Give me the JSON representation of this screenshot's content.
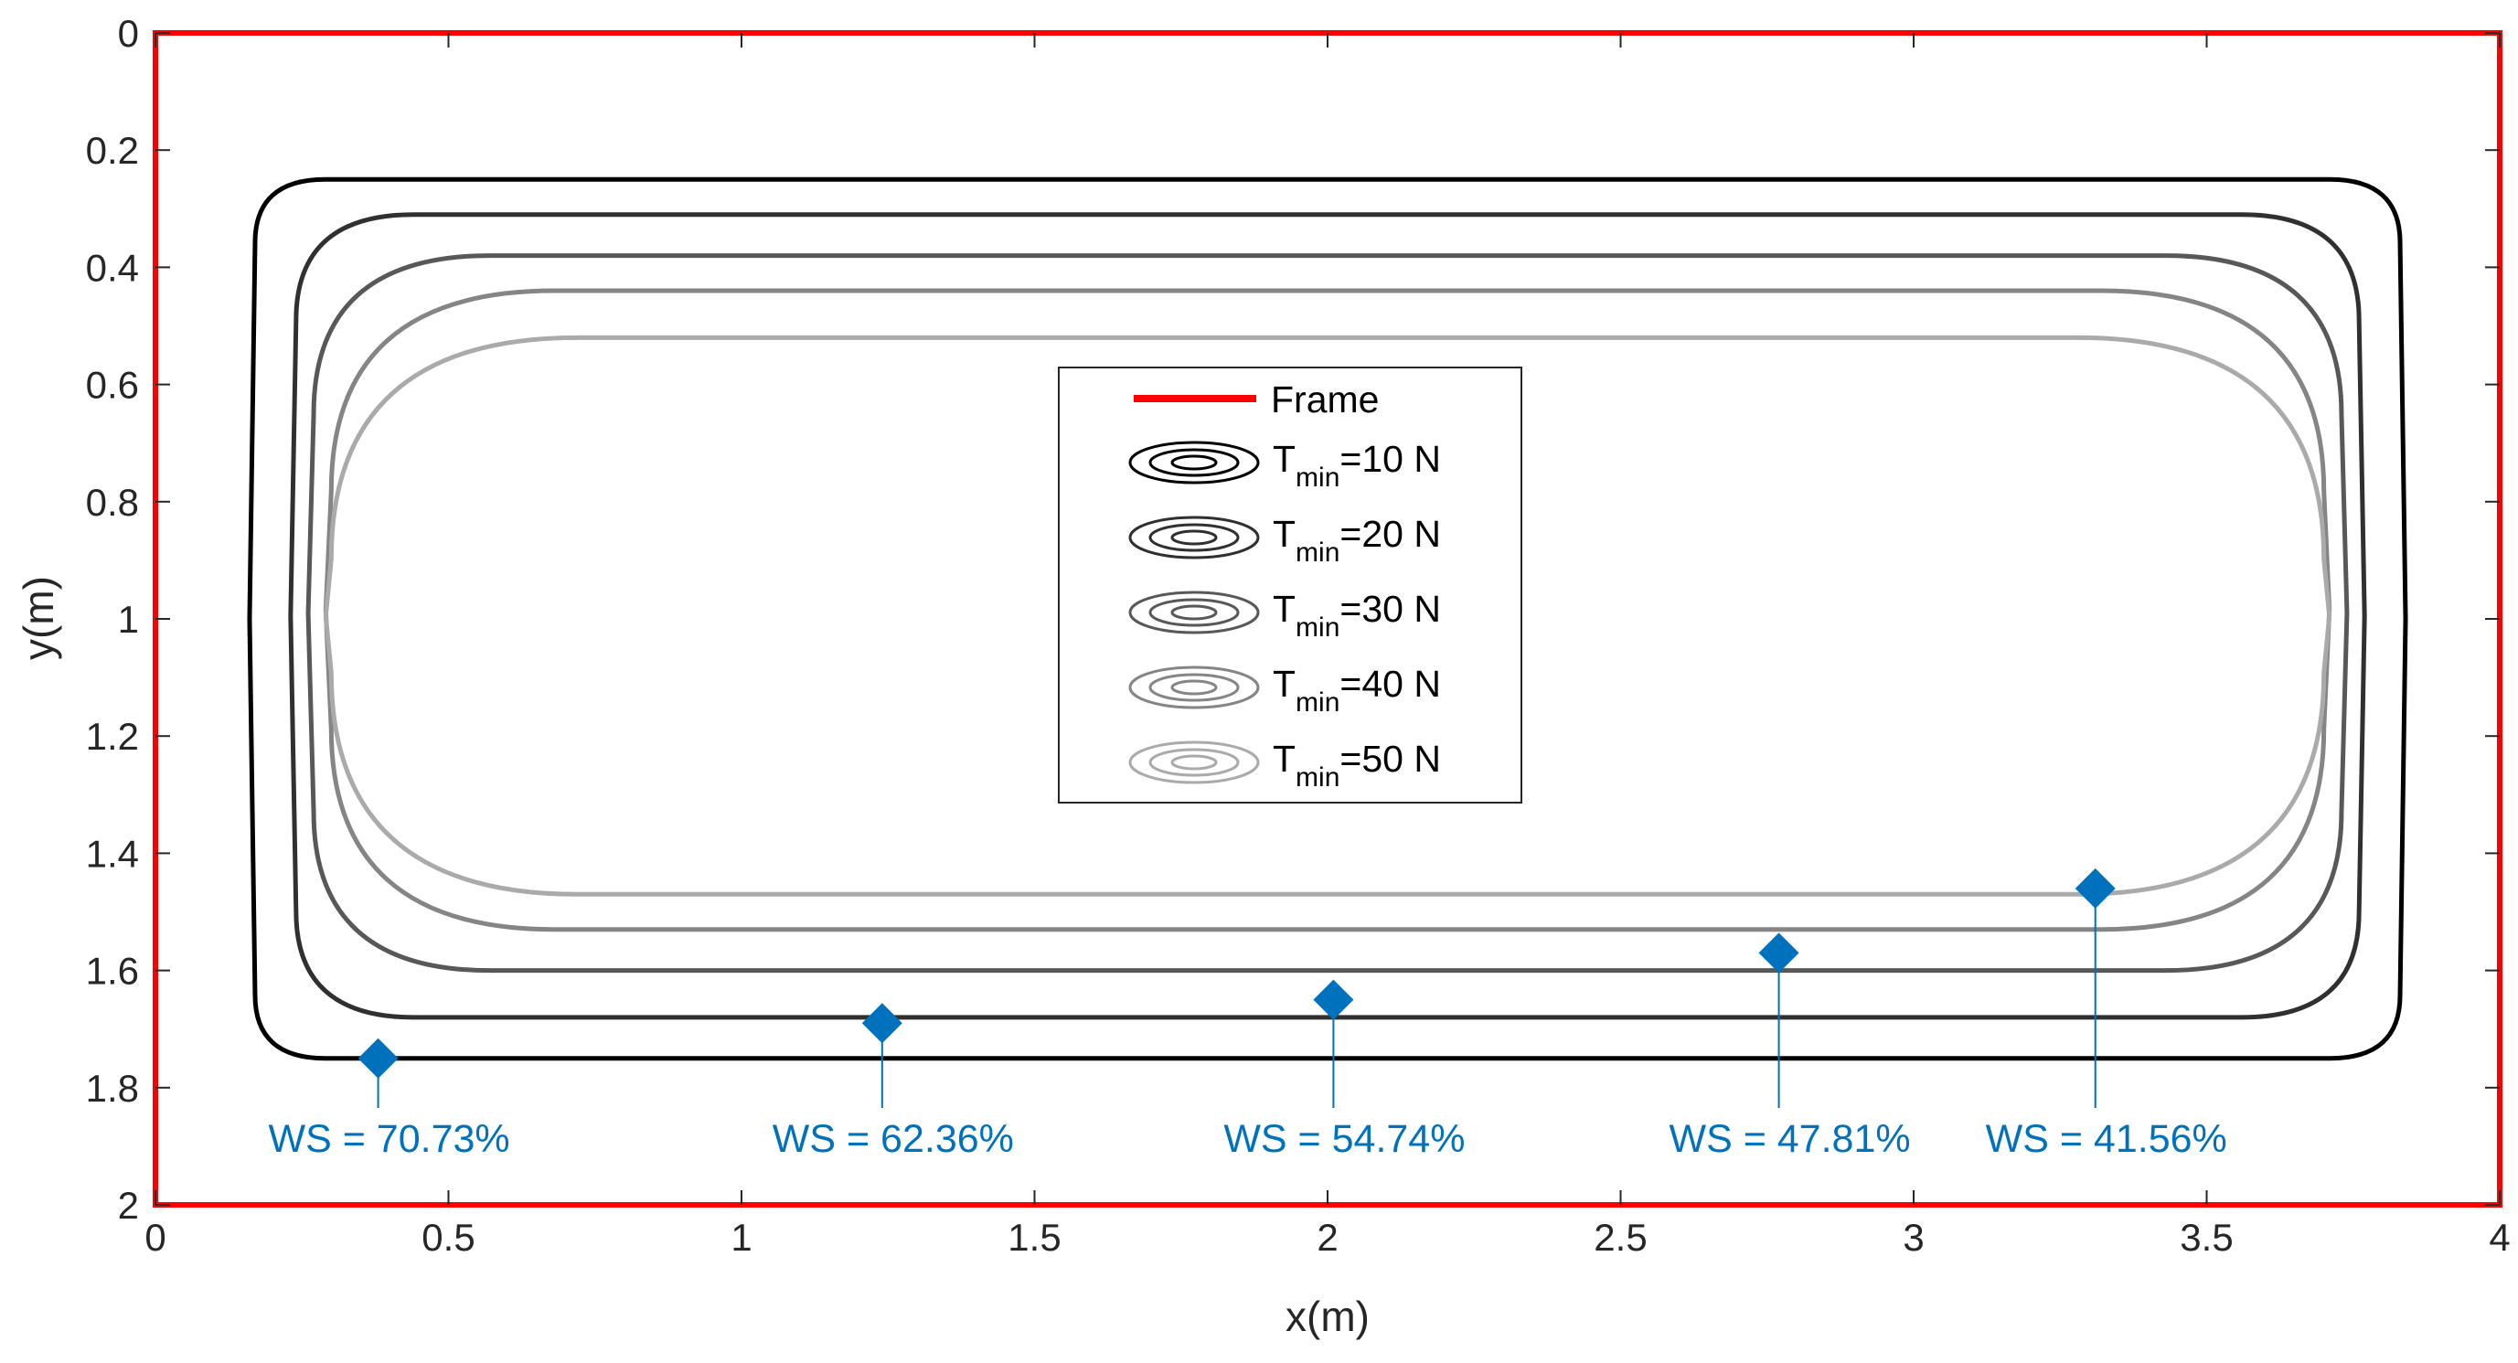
{
  "chart_data": {
    "type": "contour",
    "xlabel": "x(m)",
    "ylabel": "y(m)",
    "xlim": [
      0,
      4
    ],
    "ylim": [
      0,
      2
    ],
    "y_axis_reversed": true,
    "x_ticks": [
      0,
      0.5,
      1,
      1.5,
      2,
      2.5,
      3,
      3.5,
      4
    ],
    "y_ticks": [
      0,
      0.2,
      0.4,
      0.6,
      0.8,
      1,
      1.2,
      1.4,
      1.6,
      1.8,
      2
    ],
    "x_tick_labels": [
      "0",
      "0.5",
      "1",
      "1.5",
      "2",
      "2.5",
      "3",
      "3.5",
      "4"
    ],
    "y_tick_labels": [
      "0",
      "0.2",
      "0.4",
      "0.6",
      "0.8",
      "1",
      "1.2",
      "1.4",
      "1.6",
      "1.8",
      "2"
    ],
    "grid": false,
    "legend_position": "center",
    "frame": {
      "label": "Frame",
      "color": "#ff0000",
      "x": [
        0,
        4
      ],
      "y": [
        0,
        2
      ]
    },
    "contours": [
      {
        "label_main": "T",
        "label_sub": "min",
        "label_rest": "=10 N",
        "color": "#000000",
        "x_left": 0.17,
        "x_right": 3.83,
        "y_top": 0.25,
        "y_bottom": 1.75,
        "corner": 0.12
      },
      {
        "label_main": "T",
        "label_sub": "min",
        "label_rest": "=20 N",
        "color": "#303030",
        "x_left": 0.24,
        "x_right": 3.76,
        "y_top": 0.31,
        "y_bottom": 1.68,
        "corner": 0.2
      },
      {
        "label_main": "T",
        "label_sub": "min",
        "label_rest": "=30 N",
        "color": "#585858",
        "x_left": 0.27,
        "x_right": 3.73,
        "y_top": 0.38,
        "y_bottom": 1.6,
        "corner": 0.3
      },
      {
        "label_main": "T",
        "label_sub": "min",
        "label_rest": "=40 N",
        "color": "#858585",
        "x_left": 0.3,
        "x_right": 3.7,
        "y_top": 0.44,
        "y_bottom": 1.53,
        "corner": 0.38
      },
      {
        "label_main": "T",
        "label_sub": "min",
        "label_rest": "=50 N",
        "color": "#aaaaaa",
        "x_left": 0.3,
        "x_right": 3.7,
        "y_top": 0.52,
        "y_bottom": 1.47,
        "corner": 0.42
      }
    ],
    "workspace_markers": [
      {
        "x": 0.38,
        "y": 1.75,
        "label": "WS = 70.73%"
      },
      {
        "x": 1.24,
        "y": 1.69,
        "label": "WS = 62.36%"
      },
      {
        "x": 2.01,
        "y": 1.65,
        "label": "WS = 54.74%"
      },
      {
        "x": 2.77,
        "y": 1.57,
        "label": "WS = 47.81%"
      },
      {
        "x": 3.31,
        "y": 1.46,
        "label": "WS = 41.56%"
      }
    ],
    "marker_color": "#0072bd"
  }
}
